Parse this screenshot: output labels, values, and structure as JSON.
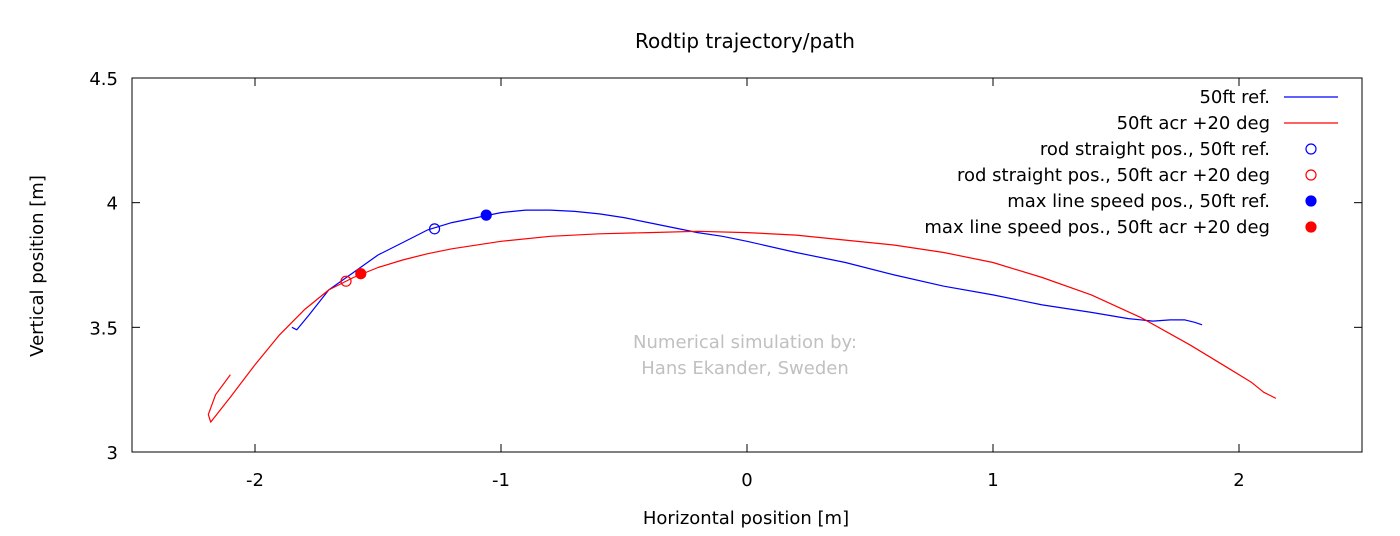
{
  "chart_data": {
    "type": "line",
    "title": "Rodtip trajectory/path",
    "xlabel": "Horizontal position [m]",
    "ylabel": "Vertical position [m]",
    "xlim": [
      -2.5,
      2.5
    ],
    "ylim": [
      3,
      4.5
    ],
    "xticks": [
      -2,
      -1,
      0,
      1,
      2
    ],
    "yticks": [
      3,
      3.5,
      4,
      4.5
    ],
    "xtick_labels": [
      "-2",
      "-1",
      "0",
      "1",
      "2"
    ],
    "ytick_labels": [
      "3",
      "3.5",
      "4",
      "4.5"
    ],
    "grid": false,
    "legend_position": "top-right",
    "annotation": [
      "Numerical simulation by:",
      "Hans Ekander, Sweden"
    ],
    "series": [
      {
        "name": "50ft ref.",
        "kind": "line",
        "color": "#0000ff",
        "x": [
          -1.85,
          -1.83,
          -1.78,
          -1.7,
          -1.6,
          -1.5,
          -1.4,
          -1.3,
          -1.2,
          -1.1,
          -1.0,
          -0.9,
          -0.8,
          -0.7,
          -0.6,
          -0.5,
          -0.4,
          -0.3,
          -0.2,
          -0.1,
          0.0,
          0.2,
          0.4,
          0.6,
          0.8,
          1.0,
          1.2,
          1.4,
          1.55,
          1.65,
          1.72,
          1.78,
          1.82,
          1.85
        ],
        "y": [
          3.5,
          3.49,
          3.55,
          3.65,
          3.72,
          3.79,
          3.84,
          3.89,
          3.92,
          3.94,
          3.96,
          3.97,
          3.97,
          3.965,
          3.955,
          3.94,
          3.92,
          3.9,
          3.88,
          3.865,
          3.845,
          3.8,
          3.76,
          3.71,
          3.665,
          3.63,
          3.59,
          3.56,
          3.535,
          3.525,
          3.53,
          3.53,
          3.52,
          3.51
        ]
      },
      {
        "name": "50ft acr +20 deg",
        "kind": "line",
        "color": "#ff0000",
        "x": [
          -2.1,
          -2.16,
          -2.19,
          -2.18,
          -2.1,
          -2.0,
          -1.9,
          -1.8,
          -1.7,
          -1.6,
          -1.5,
          -1.4,
          -1.3,
          -1.2,
          -1.0,
          -0.8,
          -0.6,
          -0.4,
          -0.2,
          0.0,
          0.2,
          0.4,
          0.6,
          0.8,
          1.0,
          1.2,
          1.4,
          1.6,
          1.8,
          1.95,
          2.05,
          2.1,
          2.13,
          2.15
        ],
        "y": [
          3.31,
          3.23,
          3.15,
          3.12,
          3.22,
          3.35,
          3.47,
          3.57,
          3.65,
          3.7,
          3.74,
          3.77,
          3.795,
          3.815,
          3.845,
          3.865,
          3.875,
          3.88,
          3.885,
          3.88,
          3.87,
          3.85,
          3.83,
          3.8,
          3.76,
          3.7,
          3.63,
          3.54,
          3.43,
          3.34,
          3.28,
          3.24,
          3.225,
          3.215
        ]
      },
      {
        "name": "rod straight pos., 50ft ref.",
        "kind": "point",
        "marker": "open-circle",
        "color": "#0000ff",
        "x": [
          -1.27
        ],
        "y": [
          3.895
        ]
      },
      {
        "name": "rod straight pos., 50ft acr +20 deg",
        "kind": "point",
        "marker": "open-circle",
        "color": "#ff0000",
        "x": [
          -1.63
        ],
        "y": [
          3.685
        ]
      },
      {
        "name": "max line speed pos., 50ft ref.",
        "kind": "point",
        "marker": "filled-circle",
        "color": "#0000ff",
        "x": [
          -1.06
        ],
        "y": [
          3.95
        ]
      },
      {
        "name": "max line speed pos., 50ft acr +20 deg",
        "kind": "point",
        "marker": "filled-circle",
        "color": "#ff0000",
        "x": [
          -1.57
        ],
        "y": [
          3.715
        ]
      }
    ]
  }
}
